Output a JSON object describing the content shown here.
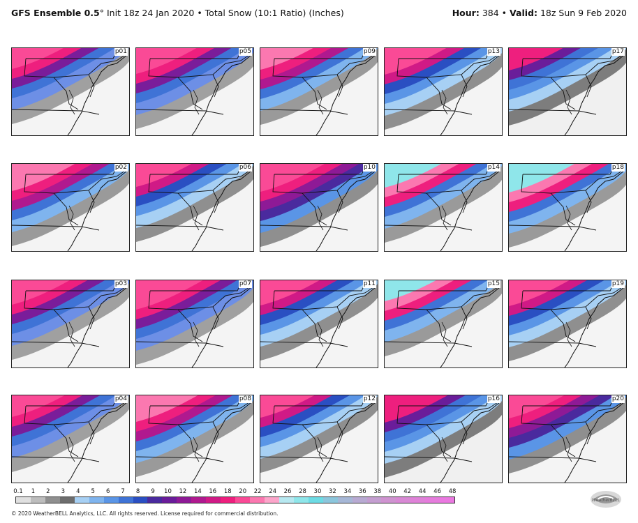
{
  "header": {
    "model": "GFS Ensemble 0.5",
    "degree": "°",
    "init": "Init 18z 24 Jan 2020",
    "sep": "•",
    "product": "Total Snow (10:1 Ratio) (Inches)",
    "hour_label": "Hour:",
    "hour": "384",
    "valid_label": "Valid:",
    "valid": "18z Sun 9 Feb 2020"
  },
  "panels": [
    {
      "label": "p01",
      "scheme": "pink-north"
    },
    {
      "label": "p05",
      "scheme": "pink-north"
    },
    {
      "label": "p09",
      "scheme": "pink-wide"
    },
    {
      "label": "p13",
      "scheme": "pink-blue"
    },
    {
      "label": "p17",
      "scheme": "blue-wide"
    },
    {
      "label": "p02",
      "scheme": "pink-wide"
    },
    {
      "label": "p06",
      "scheme": "pink-blue"
    },
    {
      "label": "p10",
      "scheme": "purple-wide"
    },
    {
      "label": "p14",
      "scheme": "cyan-north"
    },
    {
      "label": "p18",
      "scheme": "cyan-north"
    },
    {
      "label": "p03",
      "scheme": "pink-north"
    },
    {
      "label": "p07",
      "scheme": "pink-north"
    },
    {
      "label": "p11",
      "scheme": "pink-blue"
    },
    {
      "label": "p15",
      "scheme": "cyan-north"
    },
    {
      "label": "p19",
      "scheme": "pink-blue"
    },
    {
      "label": "p04",
      "scheme": "pink-north"
    },
    {
      "label": "p08",
      "scheme": "pink-wide"
    },
    {
      "label": "p12",
      "scheme": "pink-blue"
    },
    {
      "label": "p16",
      "scheme": "blue-wide"
    },
    {
      "label": "p20",
      "scheme": "purple-wide"
    }
  ],
  "legend": {
    "labels": [
      "0.1",
      "1",
      "2",
      "3",
      "4",
      "5",
      "6",
      "7",
      "8",
      "9",
      "10",
      "12",
      "14",
      "16",
      "18",
      "20",
      "22",
      "24",
      "26",
      "28",
      "30",
      "32",
      "34",
      "36",
      "38",
      "40",
      "42",
      "44",
      "46",
      "48"
    ],
    "colors": [
      "#e0e0e0",
      "#bdbdbd",
      "#8f8f8f",
      "#6d6d6d",
      "#a7d0f4",
      "#7fb4ee",
      "#5a95e6",
      "#3f73d6",
      "#2a4fc2",
      "#4a2a9e",
      "#6a1d9a",
      "#8e1a96",
      "#b0198f",
      "#d01a86",
      "#ee1f7e",
      "#fa4a96",
      "#fb78b0",
      "#fca5ca",
      "#b7e8f0",
      "#8fe6ea",
      "#6ddbe4",
      "#8cc6dc",
      "#a6b7d6",
      "#b8aad2",
      "#c49ed0",
      "#cf93d0",
      "#d889d4",
      "#df82d8",
      "#e57cdc",
      "#ea78e0"
    ]
  },
  "copyright": "© 2020 WeatherBELL Analytics, LLC. All rights reserved. License required for commercial distribution.",
  "logo_text": "WeatherBELL"
}
